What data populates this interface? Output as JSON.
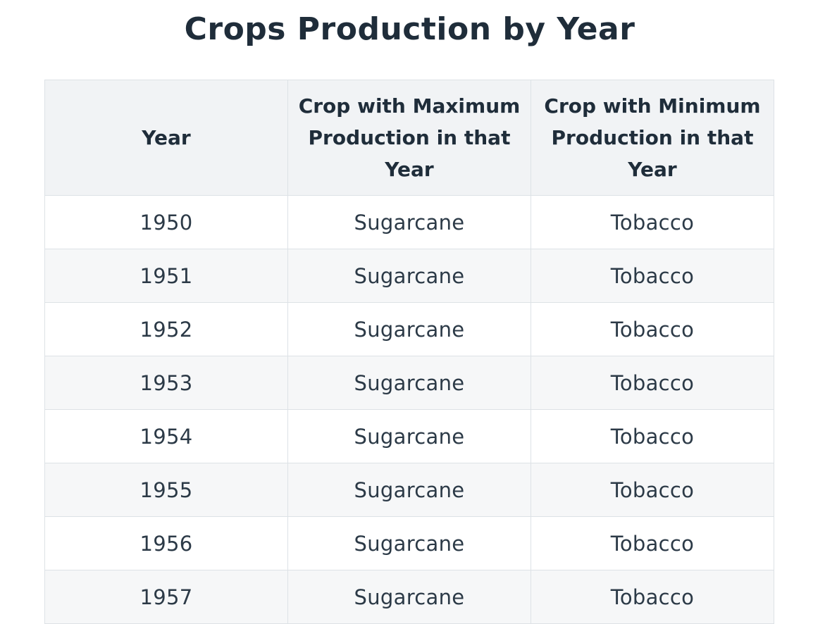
{
  "title": "Crops Production by Year",
  "table": {
    "headers": [
      "Year",
      "Crop with Maximum Production in that Year",
      "Crop with Minimum Production in that Year"
    ],
    "rows": [
      [
        "1950",
        "Sugarcane",
        "Tobacco"
      ],
      [
        "1951",
        "Sugarcane",
        "Tobacco"
      ],
      [
        "1952",
        "Sugarcane",
        "Tobacco"
      ],
      [
        "1953",
        "Sugarcane",
        "Tobacco"
      ],
      [
        "1954",
        "Sugarcane",
        "Tobacco"
      ],
      [
        "1955",
        "Sugarcane",
        "Tobacco"
      ],
      [
        "1956",
        "Sugarcane",
        "Tobacco"
      ],
      [
        "1957",
        "Sugarcane",
        "Tobacco"
      ]
    ]
  },
  "colors": {
    "text": "#1f2d3a",
    "header_bg": "#f1f3f5",
    "stripe_bg": "#f6f7f8",
    "border": "#dde2e6"
  }
}
